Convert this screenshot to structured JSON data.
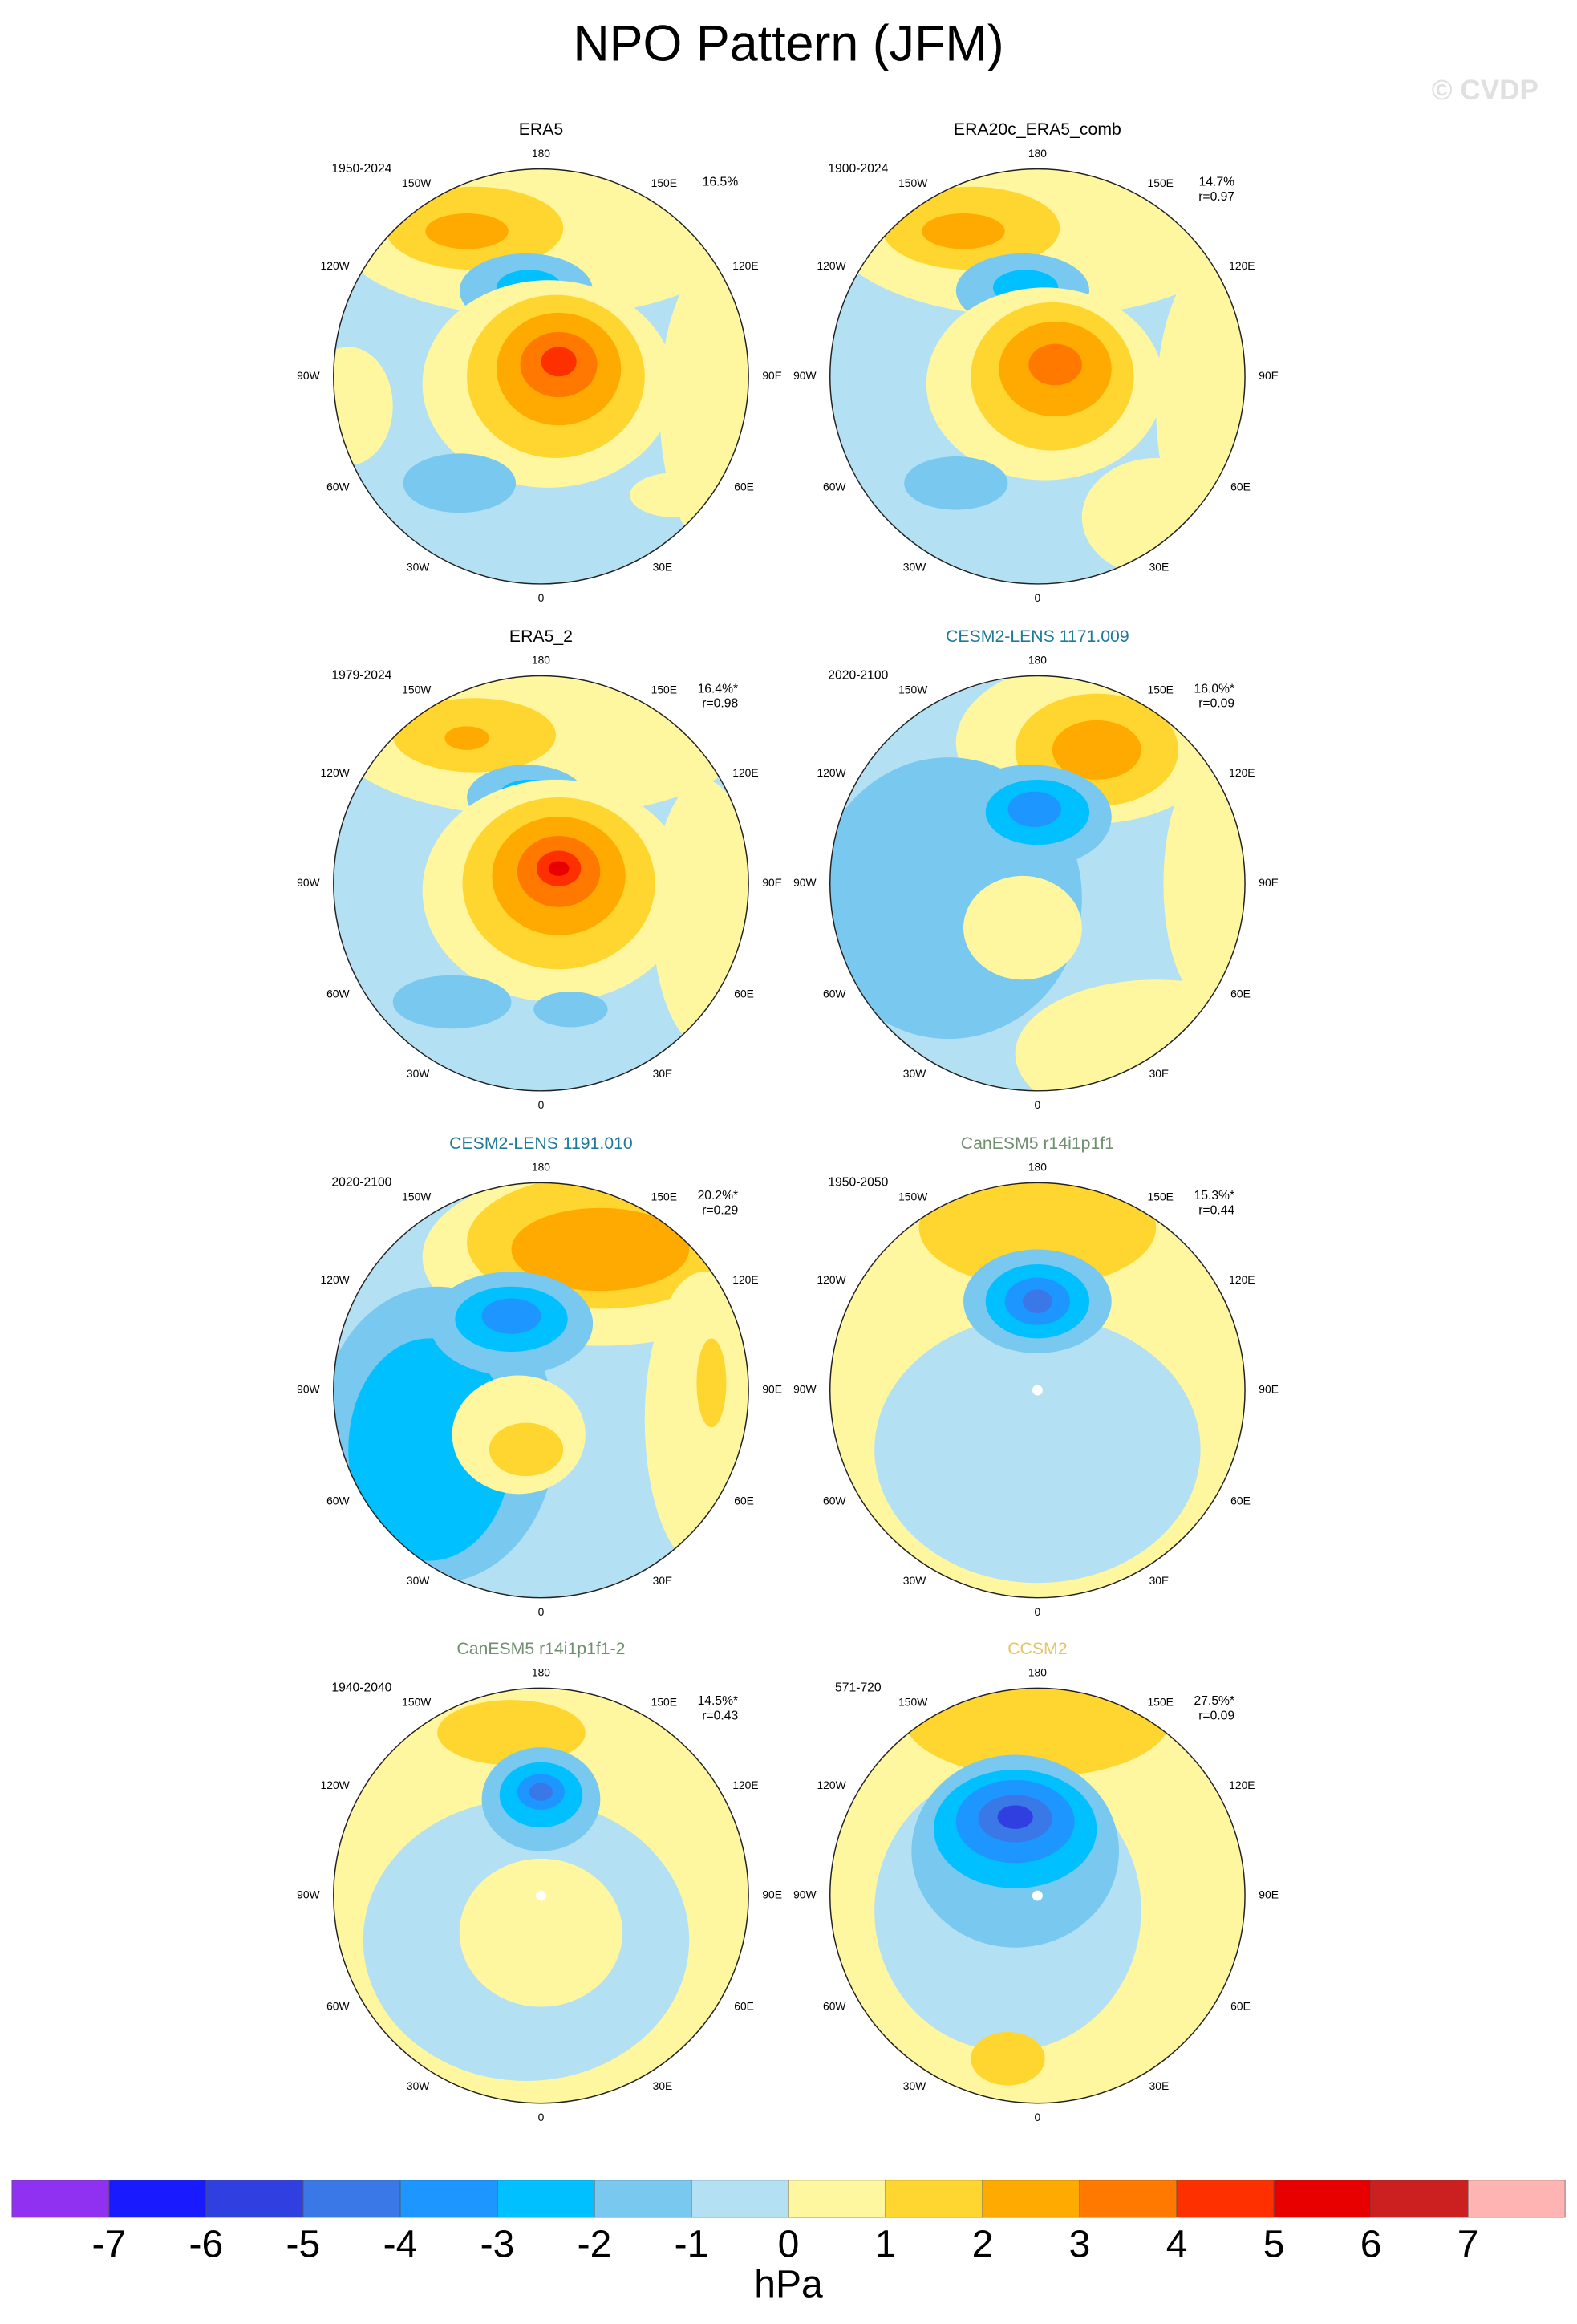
{
  "title": "NPO Pattern (JFM)",
  "watermark": "© CVDP",
  "longitude_labels": [
    "180",
    "150W",
    "120W",
    "90W",
    "60W",
    "30W",
    "0",
    "30E",
    "60E",
    "90E",
    "120E",
    "150E"
  ],
  "panels": [
    {
      "title": "ERA5",
      "title_color": "#000000",
      "period": "1950-2024",
      "pct": "16.5%"
    },
    {
      "title": "ERA20c_ERA5_comb",
      "title_color": "#000000",
      "period": "1900-2024",
      "pct": "14.7%",
      "r": "r=0.97"
    },
    {
      "title": "ERA5_2",
      "title_color": "#000000",
      "period": "1979-2024",
      "pct": "16.4%*",
      "r": "r=0.98"
    },
    {
      "title": "CESM2-LENS 1171.009",
      "title_color": "#1f7a99",
      "period": "2020-2100",
      "pct": "16.0%*",
      "r": "r=0.09"
    },
    {
      "title": "CESM2-LENS 1191.010",
      "title_color": "#1f7a99",
      "period": "2020-2100",
      "pct": "20.2%*",
      "r": "r=0.29"
    },
    {
      "title": "CanESM5 r14i1p1f1",
      "title_color": "#6f8f6f",
      "period": "1950-2050",
      "pct": "15.3%*",
      "r": "r=0.44"
    },
    {
      "title": "CanESM5 r14i1p1f1-2",
      "title_color": "#6f8f6f",
      "period": "1940-2040",
      "pct": "14.5%*",
      "r": "r=0.43"
    },
    {
      "title": "CCSM2",
      "title_color": "#e3c566",
      "period": "571-720",
      "pct": "27.5%*",
      "r": "r=0.09"
    }
  ],
  "colorbar": {
    "range": [
      -8,
      8
    ],
    "ticks": [
      -7,
      -6,
      -5,
      -4,
      -3,
      -2,
      -1,
      0,
      1,
      2,
      3,
      4,
      5,
      6,
      7
    ],
    "colors": [
      "#9030f0",
      "#1a1aff",
      "#3040e0",
      "#3a78e8",
      "#1e96ff",
      "#00c0ff",
      "#78c8f0",
      "#b4e0f4",
      "#fff6a0",
      "#ffd530",
      "#ffaa00",
      "#ff7800",
      "#ff3000",
      "#e80000",
      "#cc2020",
      "#ffb4b4"
    ],
    "unit": "hPa"
  }
}
